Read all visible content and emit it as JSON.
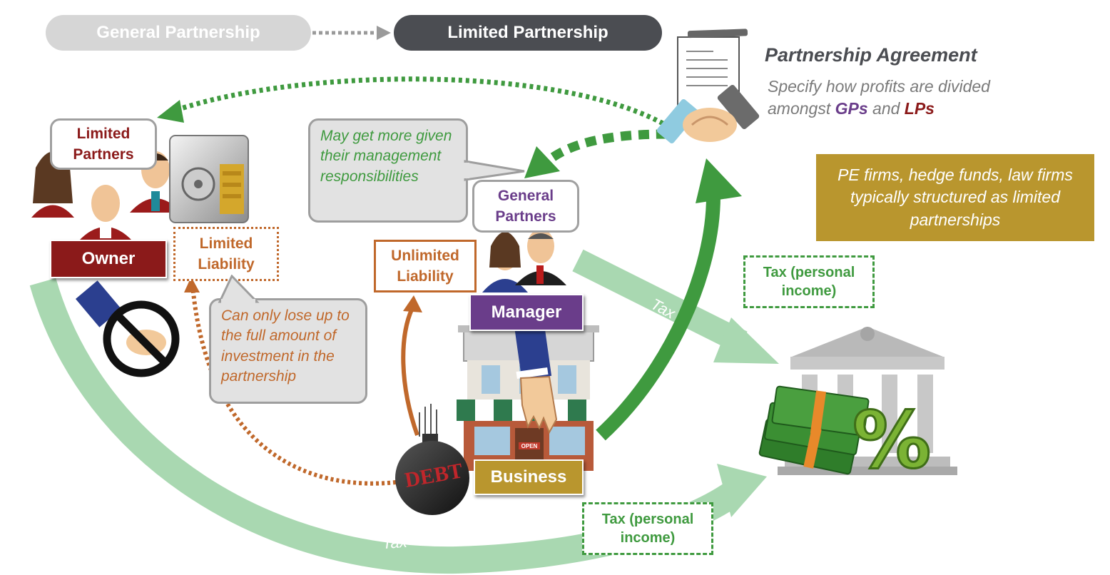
{
  "header": {
    "general_partnership": "General Partnership",
    "limited_partnership": "Limited Partnership"
  },
  "agreement": {
    "title": "Partnership Agreement",
    "desc_line1": "Specify how profits are divided",
    "desc_line2_prefix": "amongst ",
    "gps": "GPs",
    "and": " and ",
    "lps": "LPs"
  },
  "pe_note": "PE firms, hedge funds, law firms typically structured as limited partnerships",
  "limited_partners": {
    "label": "Limited Partners",
    "owner": "Owner",
    "liability": "Limited Liability",
    "note": "Can only lose up to the full amount of investment in the partnership"
  },
  "general_partners": {
    "label": "General Partners",
    "manager": "Manager",
    "liability": "Unlimited Liability",
    "note": "May get more given their management responsibilities"
  },
  "business": {
    "label": "Business",
    "debt": "DEBT",
    "sign": "OPEN"
  },
  "tax": {
    "personal_income_top": "Tax (personal income)",
    "personal_income_bottom": "Tax (personal income)",
    "arrow_label_top": "Tax",
    "arrow_label_bottom": "Tax"
  },
  "colors": {
    "green_arrow": "#3f9a3f",
    "light_green": "#9fd3a8",
    "orange": "#d0771f",
    "dark_red": "#8b1a1a",
    "purple": "#6a3d8a",
    "gold": "#b9962e",
    "gray_pill": "#d6d6d6",
    "dark_pill": "#4b4d52"
  },
  "icons": [
    "handshake-icon",
    "contract-icon",
    "safe-icon",
    "no-handshake-icon",
    "bank-icon",
    "money-icon",
    "percent-icon",
    "storefront-icon",
    "hand-icon",
    "debt-ball-icon",
    "person-icon"
  ]
}
